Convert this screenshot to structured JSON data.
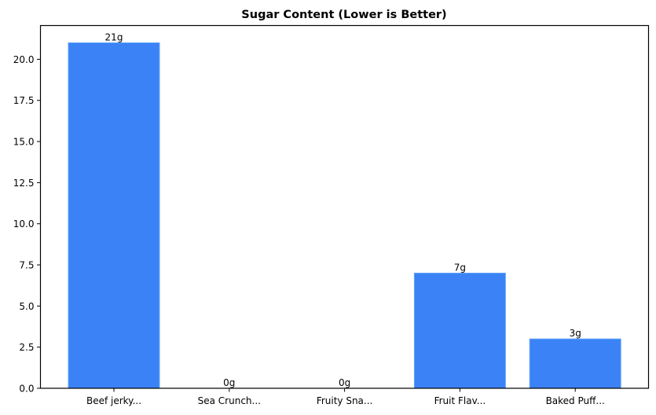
{
  "chart_data": {
    "type": "bar",
    "title": "Sugar Content (Lower is Better)",
    "xlabel": "",
    "ylabel": "",
    "categories": [
      "Beef jerky...",
      "Sea Crunch...",
      "Fruity Sna...",
      "Fruit Flav...",
      "Baked Puff..."
    ],
    "values": [
      21,
      0,
      0,
      7,
      3
    ],
    "value_labels": [
      "21g",
      "0g",
      "0g",
      "7g",
      "3g"
    ],
    "ylim": [
      0,
      22.05
    ],
    "yticks": [
      0,
      2.5,
      5,
      7.5,
      10,
      12.5,
      15,
      17.5,
      20
    ],
    "ytick_labels": [
      "0.0",
      "2.5",
      "5.0",
      "7.5",
      "10.0",
      "12.5",
      "15.0",
      "17.5",
      "20.0"
    ],
    "grid": false,
    "legend": null,
    "colors": {
      "bar": "#3b82f6",
      "bar_edge": "#60a5fa",
      "axis": "#000000"
    }
  }
}
